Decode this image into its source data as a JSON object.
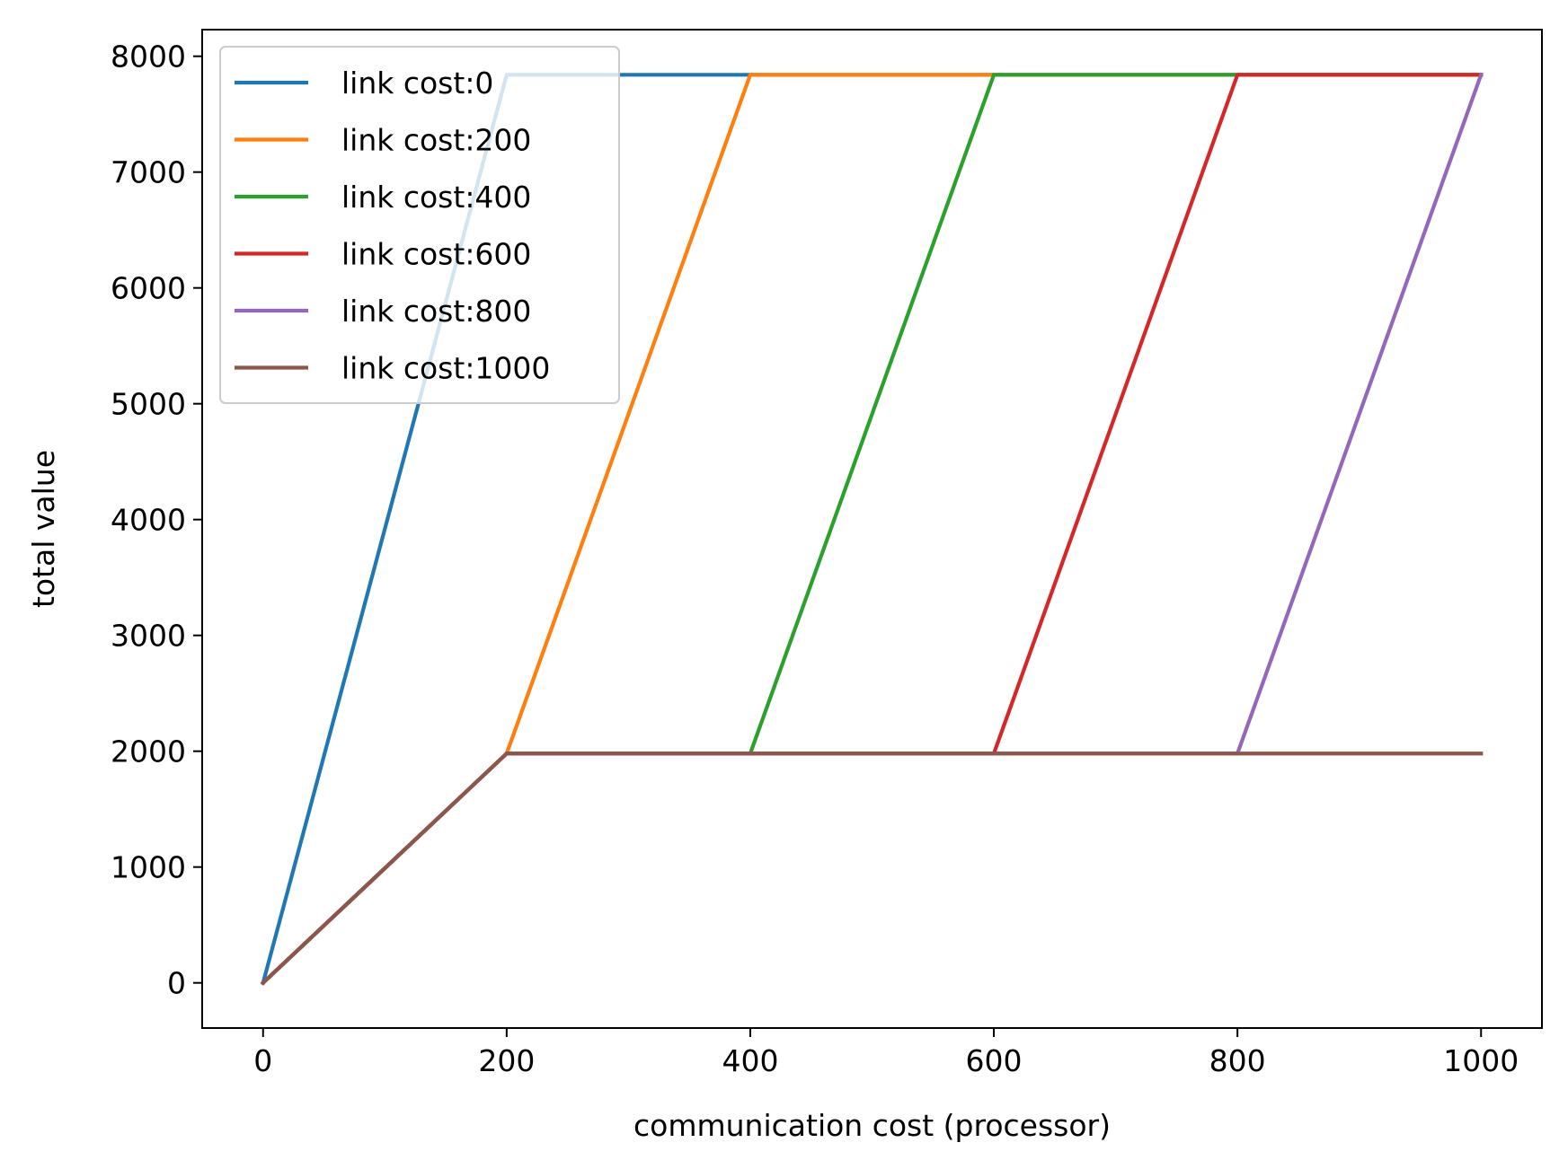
{
  "chart_data": {
    "type": "line",
    "title": "",
    "xlabel": "communication cost (processor)",
    "ylabel": "total value",
    "xlim": [
      -50,
      1050
    ],
    "ylim": [
      -390,
      8230
    ],
    "xticks": [
      0,
      200,
      400,
      600,
      800,
      1000
    ],
    "yticks": [
      0,
      1000,
      2000,
      3000,
      4000,
      5000,
      6000,
      7000,
      8000
    ],
    "grid": false,
    "legend_position": "top-left",
    "series": [
      {
        "name": "link cost:0",
        "color": "#1f77b4",
        "x": [
          0,
          200,
          400,
          600,
          800,
          1000
        ],
        "y": [
          0,
          7840,
          7840,
          7840,
          7840,
          7840
        ]
      },
      {
        "name": "link cost:200",
        "color": "#ff7f0e",
        "x": [
          0,
          200,
          400,
          600,
          800,
          1000
        ],
        "y": [
          0,
          1980,
          7840,
          7840,
          7840,
          7840
        ]
      },
      {
        "name": "link cost:400",
        "color": "#2ca02c",
        "x": [
          0,
          200,
          400,
          600,
          800,
          1000
        ],
        "y": [
          0,
          1980,
          1980,
          7840,
          7840,
          7840
        ]
      },
      {
        "name": "link cost:600",
        "color": "#d62728",
        "x": [
          0,
          200,
          400,
          600,
          800,
          1000
        ],
        "y": [
          0,
          1980,
          1980,
          1980,
          7840,
          7840
        ]
      },
      {
        "name": "link cost:800",
        "color": "#9467bd",
        "x": [
          0,
          200,
          400,
          600,
          800,
          1000
        ],
        "y": [
          0,
          1980,
          1980,
          1980,
          1980,
          7840
        ]
      },
      {
        "name": "link cost:1000",
        "color": "#8c564b",
        "x": [
          0,
          200,
          400,
          600,
          800,
          1000
        ],
        "y": [
          0,
          1980,
          1980,
          1980,
          1980,
          1980
        ]
      }
    ]
  }
}
